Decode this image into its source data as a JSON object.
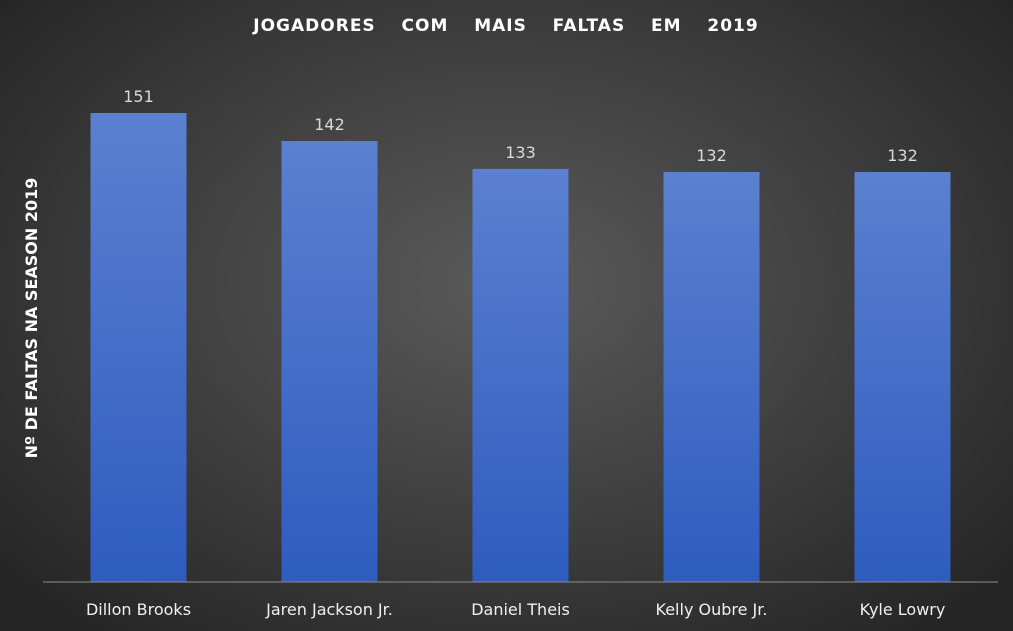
{
  "chart_data": {
    "type": "bar",
    "title": "JOGADORES  COM  MAIS  FALTAS  EM  2019",
    "xlabel": "",
    "ylabel": "Nº DE FALTAS NA SEASON 2019",
    "categories": [
      "Dillon Brooks",
      "Jaren Jackson Jr.",
      "Daniel Theis",
      "Kelly Oubre Jr.",
      "Kyle Lowry"
    ],
    "values": [
      151,
      142,
      133,
      132,
      132
    ],
    "data_labels": [
      "151",
      "142",
      "133",
      "132",
      "132"
    ],
    "ylim": [
      0,
      151
    ],
    "grid": false,
    "legend": "none",
    "colors": {
      "bar_top": "#5b80d0",
      "bar_bottom": "#2e5cbf",
      "title": "#ffffff",
      "labels": "#f0f0f0",
      "axis": "#8c8c8c"
    }
  }
}
